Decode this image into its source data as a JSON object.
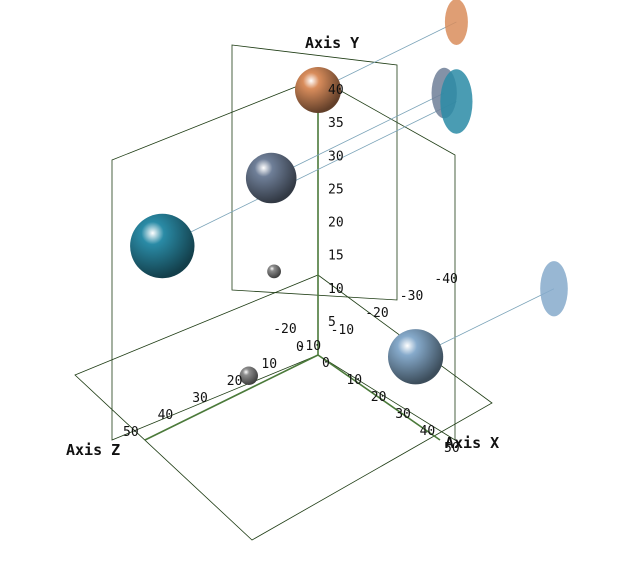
{
  "chart_data": {
    "type": "scatter",
    "title": "",
    "xlabel": "Axis X",
    "ylabel": "Axis Y",
    "zlabel": "Axis Z",
    "xlim": [
      -20,
      50
    ],
    "ylim": [
      0,
      40
    ],
    "zlim": [
      -40,
      50
    ],
    "x_ticks": [
      "-20",
      "-10",
      "0",
      "10",
      "20",
      "30",
      "40",
      "50"
    ],
    "y_ticks": [
      "5",
      "10",
      "15",
      "20",
      "25",
      "30",
      "35",
      "40"
    ],
    "z_ticks": [
      "-40",
      "-30",
      "-20",
      "-10",
      "0",
      "10",
      "20",
      "30",
      "40",
      "50"
    ],
    "points": [
      {
        "x": 0,
        "y": 40,
        "z": 0,
        "size": 10,
        "color": "#d98d5c"
      },
      {
        "x": -5,
        "y": 28,
        "z": 10,
        "size": 11,
        "color": "#6f7f98"
      },
      {
        "x": 0,
        "y": 28,
        "z": 45,
        "size": 14,
        "color": "#2a8ba6"
      },
      {
        "x": -18,
        "y": 8,
        "z": 0,
        "size": 3,
        "color": "#8d8d8d"
      },
      {
        "x": 0,
        "y": 2,
        "z": 20,
        "size": 4,
        "color": "#8d8d8d"
      },
      {
        "x": 40,
        "y": 10,
        "z": 0,
        "size": 12,
        "color": "#86aacb"
      }
    ]
  }
}
